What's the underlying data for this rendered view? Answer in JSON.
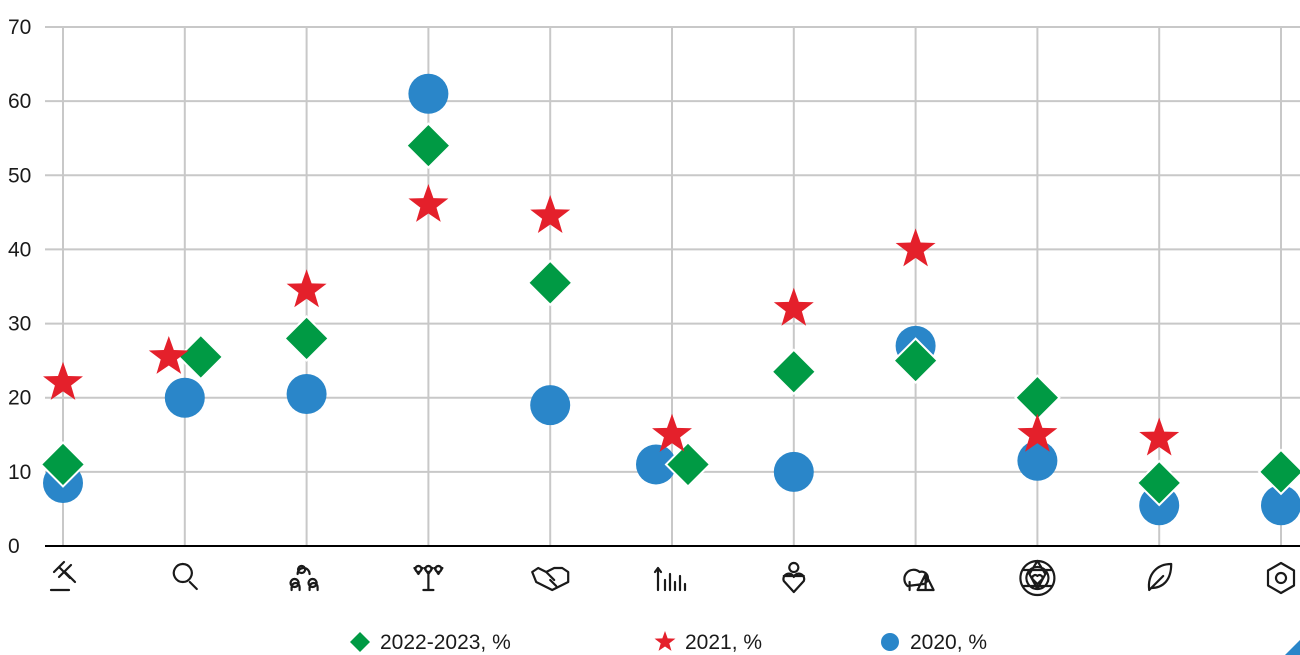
{
  "chart_data": {
    "type": "scatter",
    "title": "",
    "xlabel": "",
    "ylabel": "",
    "ylim": [
      0,
      70
    ],
    "yticks": [
      "0",
      "10",
      "20",
      "30",
      "40",
      "50",
      "60",
      "70"
    ],
    "grid": true,
    "legend_position": "bottom-center",
    "categories": [
      "gavel-icon",
      "magnifier-icon",
      "people-group-icon",
      "raised-hands-icon",
      "handshake-icon",
      "growth-bars-icon",
      "person-heart-icon",
      "nature-icon",
      "diversity-emblem-icon",
      "leaf-icon",
      "hexagon-icon"
    ],
    "series": [
      {
        "name": "2022-2023, %",
        "marker": "diamond",
        "color": "#009a44",
        "values": [
          11,
          25.5,
          28,
          54,
          35.5,
          11,
          23.5,
          25,
          20,
          8.5,
          10
        ]
      },
      {
        "name": "2021, %",
        "marker": "star",
        "color": "#e4202b",
        "values": [
          22,
          25.5,
          34.5,
          46,
          44.5,
          15,
          32,
          40,
          15,
          14.5,
          null
        ]
      },
      {
        "name": "2020, %",
        "marker": "circle",
        "color": "#2a86c9",
        "values": [
          8.5,
          20,
          20.5,
          61,
          19,
          11,
          10,
          27,
          11.5,
          5.5,
          5.5
        ]
      }
    ]
  }
}
